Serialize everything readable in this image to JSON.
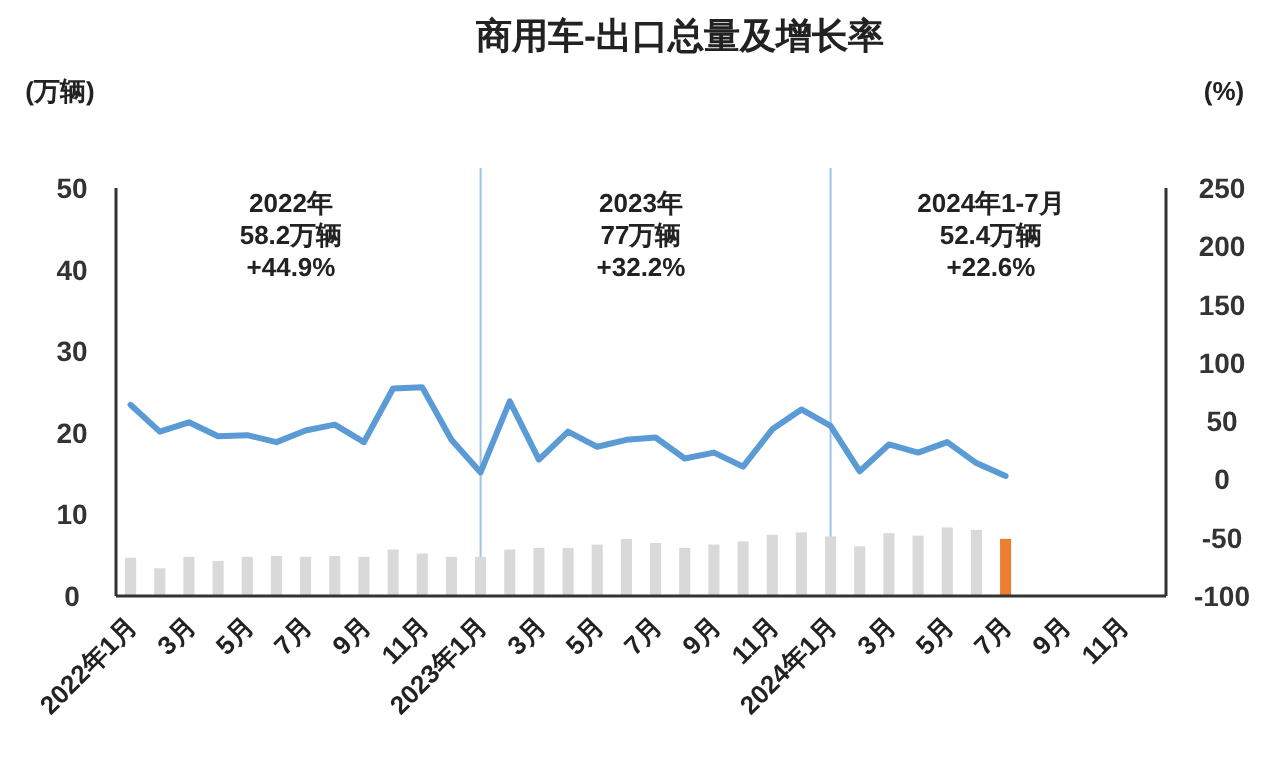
{
  "chart_data": {
    "type": "bar",
    "title": "商用车-出口总量及增长率",
    "ylabel": "(万辆)",
    "y2label": "(%)",
    "categories": [
      "2022年1月",
      null,
      "3月",
      null,
      "5月",
      null,
      "7月",
      null,
      "9月",
      null,
      "11月",
      null,
      "2023年1月",
      null,
      "3月",
      null,
      "5月",
      null,
      "7月",
      null,
      "9月",
      null,
      "11月",
      null,
      "2024年1月",
      null,
      "3月",
      null,
      "5月",
      null,
      "7月",
      null,
      "9月",
      null,
      "11月",
      null
    ],
    "series": [
      {
        "colors": [
          "#d9d9d9",
          "#d9d9d9",
          "#d9d9d9",
          "#d9d9d9",
          "#d9d9d9",
          "#d9d9d9",
          "#d9d9d9",
          "#d9d9d9",
          "#d9d9d9",
          "#d9d9d9",
          "#d9d9d9",
          "#d9d9d9",
          "#d9d9d9",
          "#d9d9d9",
          "#d9d9d9",
          "#d9d9d9",
          "#d9d9d9",
          "#d9d9d9",
          "#d9d9d9",
          "#d9d9d9",
          "#d9d9d9",
          "#d9d9d9",
          "#d9d9d9",
          "#d9d9d9",
          "#d9d9d9",
          "#d9d9d9",
          "#d9d9d9",
          "#d9d9d9",
          "#d9d9d9",
          "#d9d9d9",
          "#ed7d31",
          "#d9d9d9",
          "#d9d9d9",
          "#d9d9d9",
          "#d9d9d9",
          "#d9d9d9"
        ],
        "values": [
          4.7,
          3.4,
          4.8,
          4.3,
          4.8,
          4.9,
          4.8,
          4.9,
          4.8,
          5.7,
          5.2,
          4.8,
          4.8,
          5.7,
          5.9,
          5.9,
          6.3,
          7.0,
          6.5,
          5.9,
          6.3,
          6.7,
          7.5,
          7.8,
          7.3,
          6.1,
          7.7,
          7.4,
          8.4,
          8.1,
          7.0,
          null,
          null,
          null,
          null,
          null
        ]
      },
      {
        "type": "line",
        "axis": "y2",
        "color": "#5b9bd5",
        "values": [
          64,
          41,
          49,
          37,
          38,
          32,
          42,
          47,
          32,
          78,
          79,
          34,
          6,
          67,
          17,
          41,
          28,
          34,
          36,
          18,
          23,
          11,
          43,
          60,
          46,
          7,
          30,
          23,
          32,
          14,
          3,
          null,
          null,
          null,
          null,
          null
        ]
      }
    ],
    "ylim": [
      0,
      50
    ],
    "yticks": [
      0,
      10,
      20,
      30,
      40,
      50
    ],
    "y2lim": [
      -100,
      250
    ],
    "y2ticks": [
      -100,
      -50,
      0,
      50,
      100,
      150,
      200,
      250
    ],
    "ref_lines": [
      {
        "axis": "x",
        "value": "2023年1月",
        "color": "#9dc3e6"
      },
      {
        "axis": "x",
        "value": "2024年1月",
        "color": "#9dc3e6"
      }
    ],
    "annotations": [
      "2022年\n58.2万辆\n+44.9%",
      "2023年\n77万辆\n+32.2%",
      "2024年1-7月\n52.4万辆\n+22.6%"
    ],
    "grid": false
  }
}
